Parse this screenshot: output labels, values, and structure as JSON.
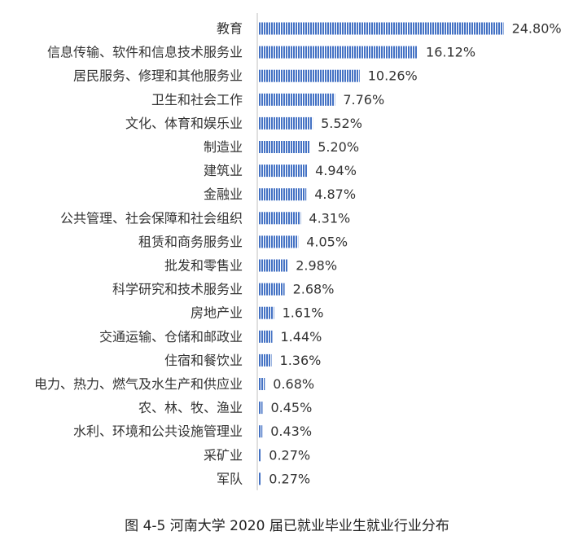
{
  "chart_data": {
    "type": "bar",
    "orientation": "horizontal",
    "title": "",
    "categories": [
      "教育",
      "信息传输、软件和信息技术服务业",
      "居民服务、修理和其他服务业",
      "卫生和社会工作",
      "文化、体育和娱乐业",
      "制造业",
      "建筑业",
      "金融业",
      "公共管理、社会保障和社会组织",
      "租赁和商务服务业",
      "批发和零售业",
      "科学研究和技术服务业",
      "房地产业",
      "交通运输、仓储和邮政业",
      "住宿和餐饮业",
      "电力、热力、燃气及水生产和供应业",
      "农、林、牧、渔业",
      "水利、环境和公共设施管理业",
      "采矿业",
      "军队"
    ],
    "values": [
      24.8,
      16.12,
      10.26,
      7.76,
      5.52,
      5.2,
      4.94,
      4.87,
      4.31,
      4.05,
      2.98,
      2.68,
      1.61,
      1.44,
      1.36,
      0.68,
      0.45,
      0.43,
      0.27,
      0.27
    ],
    "value_labels": [
      "24.80%",
      "16.12%",
      "10.26%",
      "7.76%",
      "5.52%",
      "5.20%",
      "4.94%",
      "4.87%",
      "4.31%",
      "4.05%",
      "2.98%",
      "2.68%",
      "1.61%",
      "1.44%",
      "1.36%",
      "0.68%",
      "0.45%",
      "0.43%",
      "0.27%",
      "0.27%"
    ],
    "xlim": [
      0,
      25
    ],
    "grid": false,
    "legend": "none",
    "bar_color": "#4472C4",
    "bar_pattern": "vertical-stripes"
  },
  "caption": "图 4-5  河南大学 2020 届已就业毕业生就业行业分布"
}
